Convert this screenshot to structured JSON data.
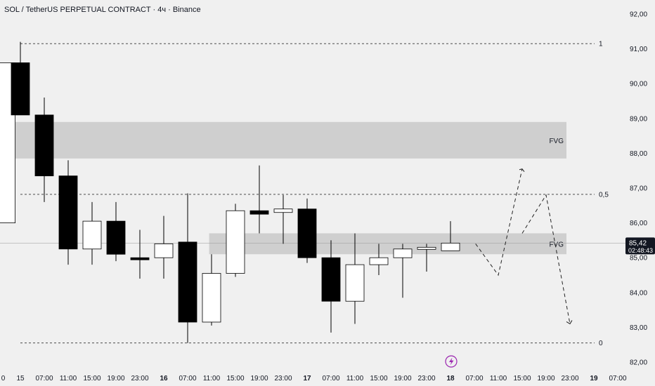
{
  "header": {
    "title": "SOL / TetherUS PERPETUAL CONTRACT · 4ч · Binance"
  },
  "colors": {
    "background": "#f0f0f0",
    "bear_body": "#000000",
    "bull_body": "#ffffff",
    "wick": "#000000",
    "fvg_fill": "#cfcfcf",
    "price_line": "#999999",
    "price_badge": "#131722",
    "event_icon": "#9c27b0"
  },
  "price_badge": {
    "price": "85,42",
    "countdown": "02:48:43",
    "value": 85.42
  },
  "event_icon": "lightning-icon",
  "chart_data": {
    "type": "candlestick",
    "title": "SOL / TetherUS PERPETUAL CONTRACT · 4ч · Binance",
    "ylim": [
      81.8,
      92.3
    ],
    "y_ticks": [
      {
        "value": 92,
        "label": "92,00"
      },
      {
        "value": 91,
        "label": "91,00"
      },
      {
        "value": 90,
        "label": "90,00"
      },
      {
        "value": 89,
        "label": "89,00"
      },
      {
        "value": 88,
        "label": "88,00"
      },
      {
        "value": 87,
        "label": "87,00"
      },
      {
        "value": 86,
        "label": "86,00"
      },
      {
        "value": 85,
        "label": "85,00"
      },
      {
        "value": 84,
        "label": "84,00"
      },
      {
        "value": 83,
        "label": "83,00"
      },
      {
        "value": 82,
        "label": "82,00"
      }
    ],
    "x_ticks": [
      {
        "slot": -0.8,
        "label": "0",
        "bold": false
      },
      {
        "slot": 0,
        "label": "15",
        "bold": false
      },
      {
        "slot": 1,
        "label": "07:00",
        "bold": false
      },
      {
        "slot": 2,
        "label": "11:00",
        "bold": false
      },
      {
        "slot": 3,
        "label": "15:00",
        "bold": false
      },
      {
        "slot": 4,
        "label": "19:00",
        "bold": false
      },
      {
        "slot": 5,
        "label": "23:00",
        "bold": false
      },
      {
        "slot": 6,
        "label": "16",
        "bold": true
      },
      {
        "slot": 7,
        "label": "07:00",
        "bold": false
      },
      {
        "slot": 8,
        "label": "11:00",
        "bold": false
      },
      {
        "slot": 9,
        "label": "15:00",
        "bold": false
      },
      {
        "slot": 10,
        "label": "19:00",
        "bold": false
      },
      {
        "slot": 11,
        "label": "23:00",
        "bold": false
      },
      {
        "slot": 12,
        "label": "17",
        "bold": true
      },
      {
        "slot": 13,
        "label": "07:00",
        "bold": false
      },
      {
        "slot": 14,
        "label": "11:00",
        "bold": false
      },
      {
        "slot": 15,
        "label": "15:00",
        "bold": false
      },
      {
        "slot": 16,
        "label": "19:00",
        "bold": false
      },
      {
        "slot": 17,
        "label": "23:00",
        "bold": false
      },
      {
        "slot": 18,
        "label": "18",
        "bold": true
      },
      {
        "slot": 19,
        "label": "07:00",
        "bold": false
      },
      {
        "slot": 20,
        "label": "11:00",
        "bold": false
      },
      {
        "slot": 21,
        "label": "15:00",
        "bold": false
      },
      {
        "slot": 22,
        "label": "19:00",
        "bold": false
      },
      {
        "slot": 23,
        "label": "23:00",
        "bold": false
      },
      {
        "slot": 24,
        "label": "19",
        "bold": true
      },
      {
        "slot": 25,
        "label": "07:00",
        "bold": false
      }
    ],
    "candles": [
      {
        "slot": -0.6,
        "open": 86.0,
        "high": 90.6,
        "low": 86.0,
        "close": 90.6
      },
      {
        "slot": 0,
        "open": 90.6,
        "high": 91.2,
        "low": 89.1,
        "close": 89.1
      },
      {
        "slot": 1,
        "open": 89.1,
        "high": 89.6,
        "low": 86.6,
        "close": 87.35
      },
      {
        "slot": 2,
        "open": 87.35,
        "high": 87.8,
        "low": 84.8,
        "close": 85.25
      },
      {
        "slot": 3,
        "open": 85.25,
        "high": 86.6,
        "low": 84.8,
        "close": 86.05
      },
      {
        "slot": 4,
        "open": 86.05,
        "high": 86.6,
        "low": 84.9,
        "close": 85.1
      },
      {
        "slot": 5,
        "open": 85.0,
        "high": 85.8,
        "low": 84.4,
        "close": 84.95
      },
      {
        "slot": 6,
        "open": 85.0,
        "high": 86.2,
        "low": 84.4,
        "close": 85.4
      },
      {
        "slot": 7,
        "open": 85.45,
        "high": 86.85,
        "low": 82.55,
        "close": 83.15
      },
      {
        "slot": 8,
        "open": 83.15,
        "high": 85.1,
        "low": 83.05,
        "close": 84.55
      },
      {
        "slot": 9,
        "open": 84.55,
        "high": 86.55,
        "low": 84.45,
        "close": 86.35
      },
      {
        "slot": 10,
        "open": 86.35,
        "high": 87.65,
        "low": 85.7,
        "close": 86.25
      },
      {
        "slot": 11,
        "open": 86.3,
        "high": 86.8,
        "low": 85.4,
        "close": 86.4
      },
      {
        "slot": 12,
        "open": 86.4,
        "high": 86.7,
        "low": 84.85,
        "close": 85.0
      },
      {
        "slot": 13,
        "open": 85.0,
        "high": 85.5,
        "low": 82.85,
        "close": 83.75
      },
      {
        "slot": 14,
        "open": 83.75,
        "high": 85.7,
        "low": 83.1,
        "close": 84.8
      },
      {
        "slot": 15,
        "open": 84.8,
        "high": 85.4,
        "low": 84.5,
        "close": 85.0
      },
      {
        "slot": 16,
        "open": 85.0,
        "high": 85.4,
        "low": 83.85,
        "close": 85.25
      },
      {
        "slot": 17,
        "open": 85.25,
        "high": 85.4,
        "low": 84.6,
        "close": 85.3
      },
      {
        "slot": 18,
        "open": 85.2,
        "high": 86.05,
        "low": 85.2,
        "close": 85.42
      }
    ],
    "fib_levels": [
      {
        "value": 91.15,
        "label": "1"
      },
      {
        "value": 86.82,
        "label": "0,5"
      },
      {
        "value": 82.55,
        "label": "0"
      }
    ],
    "fvg_zones": [
      {
        "label": "FVG",
        "top": 88.9,
        "bottom": 87.85,
        "slot_start": -0.8,
        "slot_end": 23.0
      },
      {
        "label": "FVG",
        "top": 85.7,
        "bottom": 85.1,
        "slot_start": 7.9,
        "slot_end": 23.0
      }
    ],
    "projection": [
      {
        "slot": 19.05,
        "value": 85.4
      },
      {
        "slot": 20.0,
        "value": 84.5
      },
      {
        "slot": 21.0,
        "value": 87.55
      },
      {
        "slot": 21.0,
        "value": 85.7
      },
      {
        "slot": 22.0,
        "value": 86.8
      },
      {
        "slot": 23.0,
        "value": 83.1
      }
    ]
  }
}
